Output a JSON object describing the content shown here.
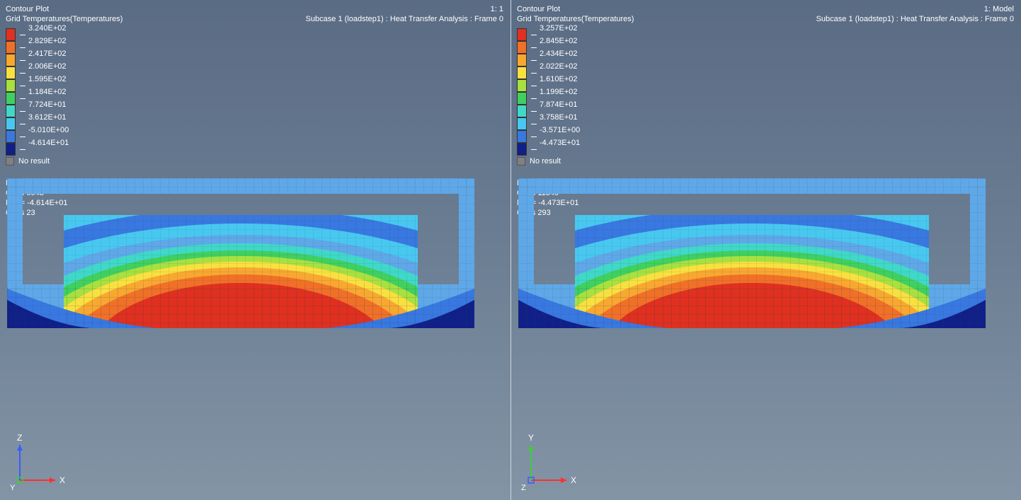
{
  "panels": [
    {
      "title1": "Contour Plot",
      "title2": "Grid Temperatures(Temperatures)",
      "top_right_1": "1: 1",
      "top_right_2": "Subcase 1 (loadstep1) : Heat Transfer Analysis : Frame 0",
      "legend_values": [
        "3.240E+02",
        "2.829E+02",
        "2.417E+02",
        "2.006E+02",
        "1.595E+02",
        "1.184E+02",
        "7.724E+01",
        "3.612E+01",
        "-5.010E+00",
        "-4.614E+01"
      ],
      "no_result": "No result",
      "stat1": "Max = 3.240E+02",
      "stat2": "Grids 6943",
      "stat3": "Min = -4.614E+01",
      "stat4": "Grids 23",
      "axis_v": "Z",
      "axis_h": "X",
      "axis_o": "Y",
      "axis_v_color": "#3a5cff",
      "axis_o_color": "#3ecc3e"
    },
    {
      "title1": "Contour Plot",
      "title2": "Grid Temperatures(Temperatures)",
      "top_right_1": "1: Model",
      "top_right_2": "Subcase 1 (loadstep1) : Heat Transfer Analysis : Frame 0",
      "legend_values": [
        "3.257E+02",
        "2.845E+02",
        "2.434E+02",
        "2.022E+02",
        "1.610E+02",
        "1.199E+02",
        "7.874E+01",
        "3.758E+01",
        "-3.571E+00",
        "-4.473E+01"
      ],
      "no_result": "No result",
      "stat1": "Max = 3.257E+02",
      "stat2": "Grids 11340",
      "stat3": "Min = -4.473E+01",
      "stat4": "Grids 293",
      "axis_v": "Y",
      "axis_h": "X",
      "axis_o": "Z",
      "axis_v_color": "#3ecc3e",
      "axis_o_color": "#3a5cff"
    }
  ],
  "legend_colors": [
    "#e03020",
    "#f07028",
    "#f8a830",
    "#f8e040",
    "#a8e040",
    "#40d060",
    "#40d8c8",
    "#48c8f0",
    "#3878e0",
    "#102088"
  ],
  "no_result_color": "#808080",
  "contour": {
    "outer_color": "#5fa8e8",
    "mesh_stroke": "#2a3a4a",
    "mesh_opacity": 0.35,
    "bands": [
      {
        "color": "#102088"
      },
      {
        "color": "#3878e0"
      },
      {
        "color": "#48c8f0"
      },
      {
        "color": "#5fa8e8"
      },
      {
        "color": "#40d8c8"
      },
      {
        "color": "#40d060"
      },
      {
        "color": "#a8e040"
      },
      {
        "color": "#f8e040"
      },
      {
        "color": "#f8a830"
      },
      {
        "color": "#f07028"
      },
      {
        "color": "#e03020"
      }
    ]
  },
  "axis_h_color": "#ff3030",
  "background_top": "#5a6b84",
  "background_bottom": "#8394a5"
}
